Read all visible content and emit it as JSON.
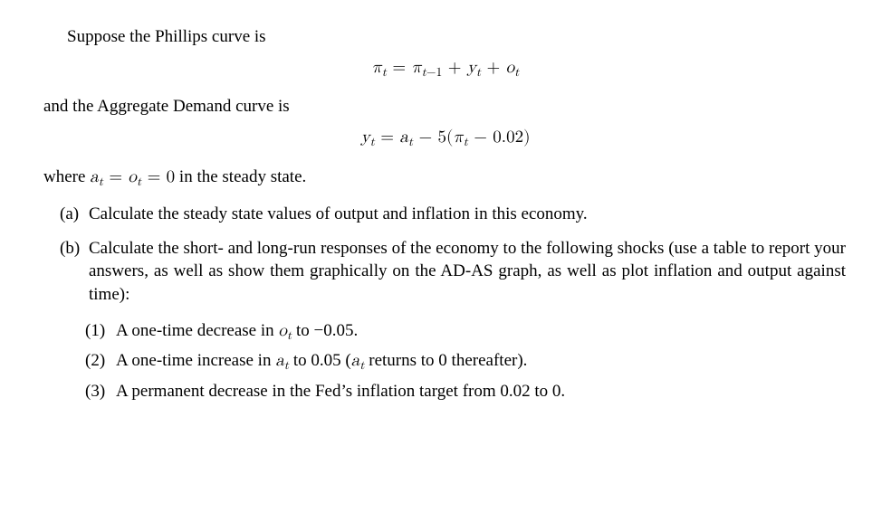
{
  "intro1": "Suppose the Phillips curve is",
  "eq1_html": "<span class='mpi'>π</span><sub>t</sub> <span class='rm'>=</span> <span class='mpi'>π</span><sub>t<span class='rm'>−1</span></sub> <span class='rm'>+</span> y<sub>t</sub> <span class='rm'>+</span> o<sub>t</sub>",
  "intro2": "and the Aggregate Demand curve is",
  "eq2_html": "y<sub>t</sub> <span class='rm'>=</span> a<sub>t</sub> <span class='rm'>− 5(</span><span class='mpi'>π</span><sub>t</sub> <span class='rm'>− 0.02)</span>",
  "where_pre": "where ",
  "where_math": "a<sub>t</sub> <span class='rm'>=</span> o<sub>t</sub> <span class='rm'>= 0</span>",
  "where_post": " in the steady state.",
  "a_label": "(a)",
  "a_text": "Calculate the steady state values of output and inflation in this economy.",
  "b_label": "(b)",
  "b_text": "Calculate the short- and long-run responses of the economy to the following shocks (use a table to report your answers, as well as show them graphically on the AD-AS graph, as well as plot inflation and output against time):",
  "s1_label": "(1)",
  "s1_pre": "A one-time decrease in ",
  "s1_math": "o<sub>t</sub>",
  "s1_post": " to −0.05.",
  "s2_label": "(2)",
  "s2_pre": "A one-time increase in ",
  "s2_math1": "a<sub>t</sub>",
  "s2_mid": " to 0.05 (",
  "s2_math2": "a<sub>t</sub>",
  "s2_post": " returns to 0 thereafter).",
  "s3_label": "(3)",
  "s3_text": "A permanent decrease in the Fed’s inflation target from 0.02 to 0."
}
